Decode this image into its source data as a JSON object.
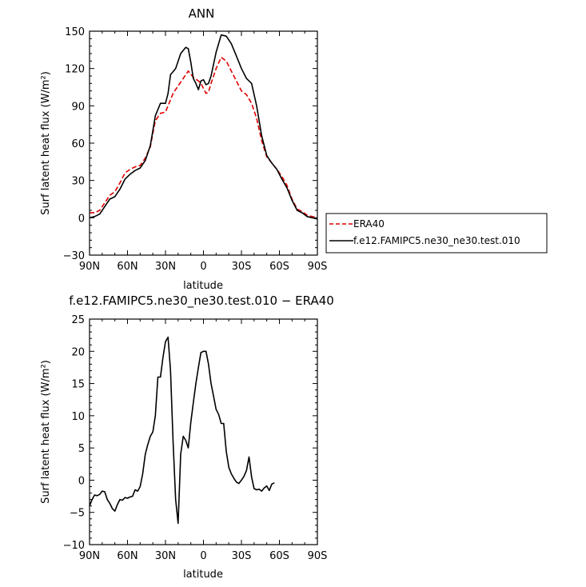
{
  "chart_data": [
    {
      "type": "line",
      "title": "ANN",
      "xlabel": "latitude",
      "ylabel": "Surf latent heat flux (W/m²)",
      "xlim": [
        -90,
        90
      ],
      "ylim": [
        -30,
        150
      ],
      "x_ticks": [
        -90,
        -60,
        -30,
        0,
        30,
        60,
        90
      ],
      "x_tick_labels": [
        "90N",
        "60N",
        "30N",
        "0",
        "30S",
        "60S",
        "90S"
      ],
      "y_ticks": [
        -30,
        0,
        30,
        60,
        90,
        120,
        150
      ],
      "y_tick_labels": [
        "−30",
        "0",
        "30",
        "60",
        "90",
        "120",
        "150"
      ],
      "legend": {
        "placement": "outside-right"
      },
      "series": [
        {
          "name": "ERA40",
          "color": "#e00000",
          "dash": "dashed",
          "points": [
            [
              -90,
              4
            ],
            [
              -86,
              4
            ],
            [
              -82,
              6
            ],
            [
              -78,
              12
            ],
            [
              -74,
              18
            ],
            [
              -70,
              21
            ],
            [
              -66,
              28
            ],
            [
              -62,
              36
            ],
            [
              -58,
              39
            ],
            [
              -54,
              41
            ],
            [
              -50,
              42
            ],
            [
              -46,
              48
            ],
            [
              -42,
              57
            ],
            [
              -40,
              68
            ],
            [
              -38,
              78
            ],
            [
              -34,
              84
            ],
            [
              -30,
              85
            ],
            [
              -28,
              90
            ],
            [
              -24,
              100
            ],
            [
              -20,
              106
            ],
            [
              -16,
              112
            ],
            [
              -12,
              118
            ],
            [
              -8,
              113
            ],
            [
              -4,
              110
            ],
            [
              -2,
              108
            ],
            [
              0,
              104
            ],
            [
              2,
              100
            ],
            [
              4,
              101
            ],
            [
              6,
              108
            ],
            [
              10,
              120
            ],
            [
              14,
              129
            ],
            [
              18,
              126
            ],
            [
              22,
              118
            ],
            [
              26,
              110
            ],
            [
              30,
              102
            ],
            [
              34,
              99
            ],
            [
              38,
              92
            ],
            [
              42,
              80
            ],
            [
              46,
              62
            ],
            [
              50,
              49
            ],
            [
              54,
              44
            ],
            [
              58,
              39
            ],
            [
              62,
              33
            ],
            [
              66,
              26
            ],
            [
              70,
              15
            ],
            [
              74,
              7
            ],
            [
              78,
              5
            ],
            [
              82,
              2
            ],
            [
              86,
              1
            ],
            [
              90,
              0
            ]
          ]
        },
        {
          "name": "f.e12.FAMIPC5.ne30_ne30.test.010",
          "color": "#000000",
          "dash": "solid",
          "points": [
            [
              -90,
              0
            ],
            [
              -86,
              1
            ],
            [
              -82,
              3
            ],
            [
              -78,
              9
            ],
            [
              -74,
              15
            ],
            [
              -70,
              17
            ],
            [
              -66,
              23
            ],
            [
              -62,
              31
            ],
            [
              -58,
              35
            ],
            [
              -54,
              38
            ],
            [
              -50,
              40
            ],
            [
              -46,
              46
            ],
            [
              -42,
              58
            ],
            [
              -40,
              70
            ],
            [
              -38,
              82
            ],
            [
              -34,
              92
            ],
            [
              -30,
              92
            ],
            [
              -28,
              100
            ],
            [
              -26,
              115
            ],
            [
              -22,
              120
            ],
            [
              -18,
              132
            ],
            [
              -14,
              137
            ],
            [
              -12,
              136
            ],
            [
              -10,
              125
            ],
            [
              -8,
              112
            ],
            [
              -6,
              108
            ],
            [
              -4,
              103
            ],
            [
              -2,
              110
            ],
            [
              0,
              111
            ],
            [
              2,
              107
            ],
            [
              4,
              108
            ],
            [
              6,
              114
            ],
            [
              10,
              133
            ],
            [
              14,
              147
            ],
            [
              18,
              146
            ],
            [
              22,
              140
            ],
            [
              26,
              130
            ],
            [
              30,
              120
            ],
            [
              34,
              112
            ],
            [
              38,
              108
            ],
            [
              42,
              90
            ],
            [
              46,
              66
            ],
            [
              50,
              50
            ],
            [
              54,
              44
            ],
            [
              58,
              39
            ],
            [
              62,
              31
            ],
            [
              66,
              24
            ],
            [
              70,
              14
            ],
            [
              74,
              6
            ],
            [
              78,
              4
            ],
            [
              82,
              1
            ],
            [
              86,
              0
            ],
            [
              90,
              -1
            ]
          ]
        }
      ]
    },
    {
      "type": "line",
      "title": "f.e12.FAMIPC5.ne30_ne30.test.010 − ERA40",
      "xlabel": "latitude",
      "ylabel": "Surf latent heat flux (W/m²)",
      "xlim": [
        -90,
        90
      ],
      "ylim": [
        -10,
        25
      ],
      "x_ticks": [
        -90,
        -60,
        -30,
        0,
        30,
        60,
        90
      ],
      "x_tick_labels": [
        "90N",
        "60N",
        "30N",
        "0",
        "30S",
        "60S",
        "90S"
      ],
      "y_ticks": [
        -10,
        -5,
        0,
        5,
        10,
        15,
        20,
        25
      ],
      "y_tick_labels": [
        "−10",
        "−5",
        "0",
        "5",
        "10",
        "15",
        "20",
        "25"
      ],
      "series": [
        {
          "name": "",
          "color": "#000000",
          "dash": "solid",
          "points": [
            [
              -90,
              -4
            ],
            [
              -88,
              -3
            ],
            [
              -86,
              -2.3
            ],
            [
              -84,
              -2.4
            ],
            [
              -82,
              -2.2
            ],
            [
              -80,
              -1.7
            ],
            [
              -78,
              -1.8
            ],
            [
              -76,
              -3
            ],
            [
              -74,
              -3.6
            ],
            [
              -72,
              -4.4
            ],
            [
              -70,
              -4.8
            ],
            [
              -68,
              -3.8
            ],
            [
              -66,
              -3
            ],
            [
              -64,
              -3.1
            ],
            [
              -62,
              -2.7
            ],
            [
              -60,
              -2.8
            ],
            [
              -58,
              -2.6
            ],
            [
              -56,
              -2.5
            ],
            [
              -54,
              -1.5
            ],
            [
              -52,
              -1.7
            ],
            [
              -50,
              -1
            ],
            [
              -48,
              1
            ],
            [
              -46,
              4
            ],
            [
              -44,
              5.5
            ],
            [
              -42,
              6.8
            ],
            [
              -40,
              7.5
            ],
            [
              -38,
              10
            ],
            [
              -36,
              16
            ],
            [
              -34,
              16
            ],
            [
              -32,
              19
            ],
            [
              -30,
              21.5
            ],
            [
              -28,
              22.2
            ],
            [
              -26,
              17
            ],
            [
              -24,
              6
            ],
            [
              -22,
              -3
            ],
            [
              -20,
              -6.7
            ],
            [
              -18,
              4
            ],
            [
              -16,
              6.8
            ],
            [
              -14,
              6.2
            ],
            [
              -12,
              5
            ],
            [
              -10,
              9
            ],
            [
              -8,
              12
            ],
            [
              -6,
              15
            ],
            [
              -4,
              17.5
            ],
            [
              -2,
              19.8
            ],
            [
              0,
              20
            ],
            [
              2,
              20
            ],
            [
              4,
              18
            ],
            [
              6,
              15
            ],
            [
              8,
              13
            ],
            [
              10,
              11
            ],
            [
              12,
              10.2
            ],
            [
              14,
              8.8
            ],
            [
              16,
              8.8
            ],
            [
              18,
              4.5
            ],
            [
              20,
              2
            ],
            [
              22,
              1
            ],
            [
              24,
              0.3
            ],
            [
              26,
              -0.3
            ],
            [
              28,
              -0.5
            ],
            [
              30,
              0
            ],
            [
              32,
              0.6
            ],
            [
              34,
              1.5
            ],
            [
              36,
              3.6
            ],
            [
              38,
              0.5
            ],
            [
              40,
              -1.3
            ],
            [
              42,
              -1.5
            ],
            [
              44,
              -1.4
            ],
            [
              46,
              -1.7
            ],
            [
              48,
              -1.2
            ],
            [
              50,
              -0.9
            ],
            [
              52,
              -1.6
            ],
            [
              54,
              -0.6
            ],
            [
              56,
              -0.4
            ]
          ]
        }
      ]
    }
  ]
}
